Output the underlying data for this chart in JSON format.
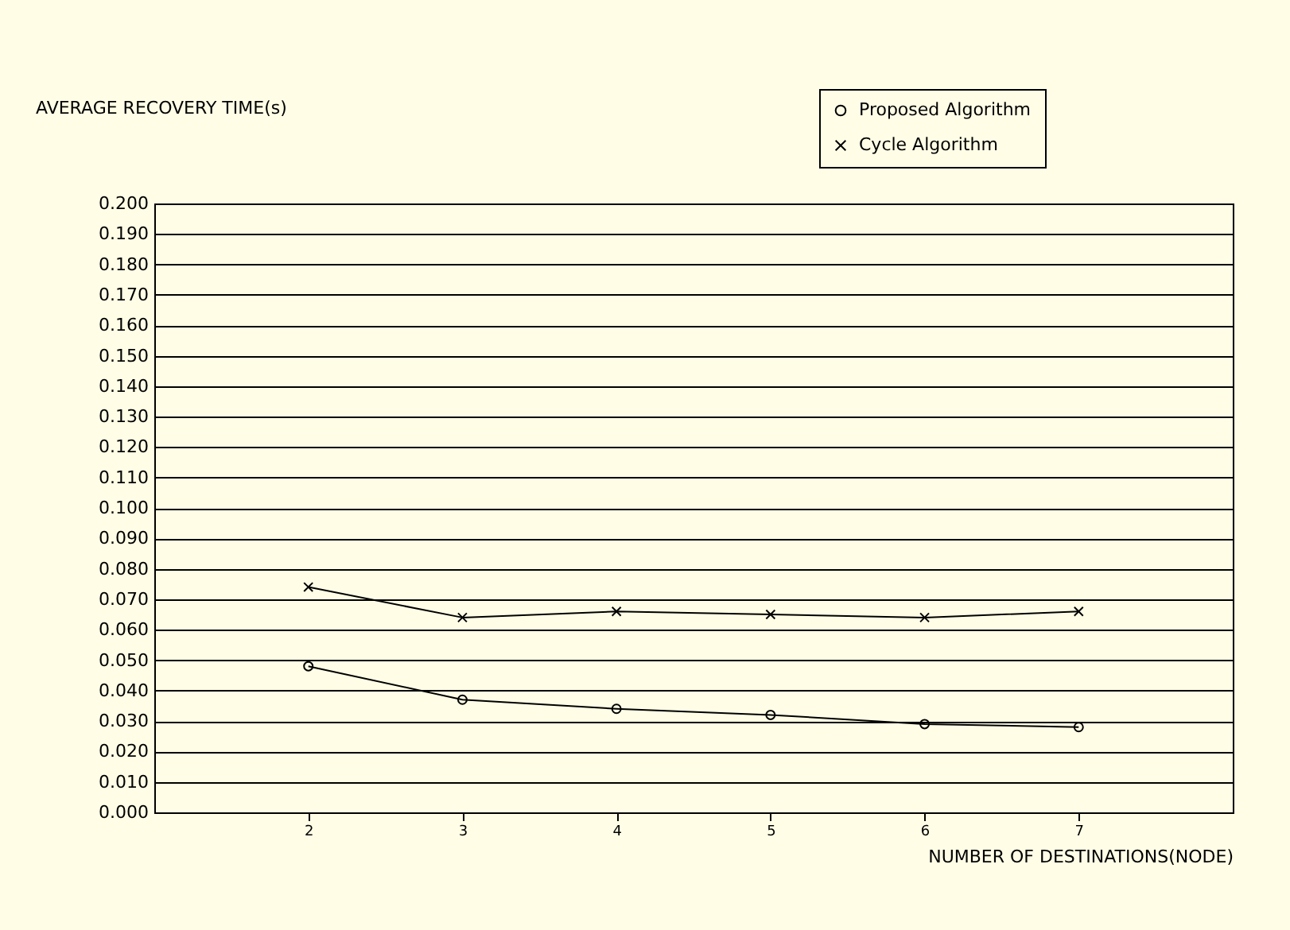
{
  "chart_data": {
    "type": "line",
    "ylabel": "AVERAGE RECOVERY TIME(s)",
    "xlabel": "NUMBER OF DESTINATIONS(NODE)",
    "x": [
      2,
      3,
      4,
      5,
      6,
      7
    ],
    "xlim": [
      1,
      8
    ],
    "xticks": [
      2,
      3,
      4,
      5,
      6,
      7
    ],
    "ylim": [
      0,
      0.2
    ],
    "yticks": [
      {
        "value": 0,
        "label": "0.000"
      },
      {
        "value": 0.01,
        "label": "0.010"
      },
      {
        "value": 0.02,
        "label": "0.020"
      },
      {
        "value": 0.03,
        "label": "0.030"
      },
      {
        "value": 0.04,
        "label": "0.040"
      },
      {
        "value": 0.05,
        "label": "0.050"
      },
      {
        "value": 0.06,
        "label": "0.060"
      },
      {
        "value": 0.07,
        "label": "0.070"
      },
      {
        "value": 0.08,
        "label": "0.080"
      },
      {
        "value": 0.09,
        "label": "0.090"
      },
      {
        "value": 0.1,
        "label": "0.100"
      },
      {
        "value": 0.11,
        "label": "0.110"
      },
      {
        "value": 0.12,
        "label": "0.120"
      },
      {
        "value": 0.13,
        "label": "0.130"
      },
      {
        "value": 0.14,
        "label": "0.140"
      },
      {
        "value": 0.15,
        "label": "0.150"
      },
      {
        "value": 0.16,
        "label": "0.160"
      },
      {
        "value": 0.17,
        "label": "0.170"
      },
      {
        "value": 0.18,
        "label": "0.180"
      },
      {
        "value": 0.19,
        "label": "0.190"
      },
      {
        "value": 0.2,
        "label": "0.200"
      }
    ],
    "grid": "y",
    "legend": "top right",
    "line_style": "solid",
    "series": [
      {
        "name": "Proposed Algorithm",
        "color": "#000000",
        "marker": "circle",
        "values": [
          0.048,
          0.037,
          0.034,
          0.032,
          0.029,
          0.028
        ]
      },
      {
        "name": "Cycle Algorithm",
        "color": "#000000",
        "marker": "cross",
        "values": [
          0.074,
          0.064,
          0.066,
          0.065,
          0.064,
          0.066
        ]
      }
    ]
  }
}
